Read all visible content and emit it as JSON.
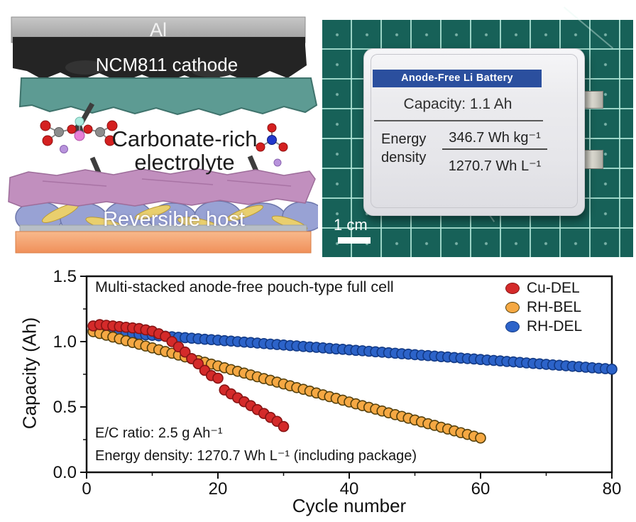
{
  "schematic": {
    "al": "Al",
    "cathode": "NCM811 cathode",
    "electrolyte_line1": "Carbonate-rich",
    "electrolyte_line2": "electrolyte",
    "host": "Reversible host"
  },
  "photo": {
    "title": "Anode-Free Li Battery",
    "capacity": "Capacity: 1.1 Ah",
    "energy_word1": "Energy",
    "energy_word2": "density",
    "energy_gravimetric": "346.7 Wh kg⁻¹",
    "energy_volumetric": "1270.7 Wh L⁻¹",
    "scale": "1 cm"
  },
  "chart_data": {
    "type": "scatter",
    "title": "Multi-stacked anode-free pouch-type full cell",
    "xlabel": "Cycle number",
    "ylabel": "Capacity (Ah)",
    "xlim": [
      0,
      80
    ],
    "ylim": [
      0,
      1.5
    ],
    "x_ticks": [
      0,
      20,
      40,
      60,
      80
    ],
    "x_minor_ticks": [
      10,
      30,
      50,
      70
    ],
    "y_ticks": [
      0,
      0.5,
      1,
      1.5
    ],
    "y_minor_ticks": [
      0.25,
      0.75,
      1.25
    ],
    "grid": false,
    "legend_position": "top-right",
    "annotations": [
      "E/C ratio: 2.5 g Ah⁻¹",
      "Energy density: 1270.7 Wh L⁻¹ (including package)"
    ],
    "series": [
      {
        "name": "Cu-DEL",
        "color": "#d42a2a",
        "edge": "#871414",
        "x": [
          1,
          2,
          3,
          4,
          5,
          6,
          7,
          8,
          9,
          10,
          11,
          12,
          13,
          14,
          15,
          16,
          17,
          18,
          19,
          20,
          21,
          22,
          23,
          24,
          25,
          26,
          27,
          28,
          29,
          30
        ],
        "y": [
          1.12,
          1.13,
          1.125,
          1.12,
          1.115,
          1.11,
          1.105,
          1.1,
          1.09,
          1.08,
          1.06,
          1.04,
          1.0,
          0.96,
          0.92,
          0.87,
          0.83,
          0.78,
          0.74,
          0.72,
          0.63,
          0.6,
          0.57,
          0.54,
          0.51,
          0.48,
          0.45,
          0.42,
          0.39,
          0.35
        ]
      },
      {
        "name": "RH-BEL",
        "color": "#f5a843",
        "edge": "#55410d",
        "x": [
          1,
          2,
          3,
          4,
          5,
          6,
          7,
          8,
          9,
          10,
          11,
          12,
          13,
          14,
          15,
          16,
          17,
          18,
          19,
          20,
          21,
          22,
          23,
          24,
          25,
          26,
          27,
          28,
          29,
          30,
          31,
          32,
          33,
          34,
          35,
          36,
          37,
          38,
          39,
          40,
          41,
          42,
          43,
          44,
          45,
          46,
          47,
          48,
          49,
          50,
          51,
          52,
          53,
          54,
          55,
          56,
          57,
          58,
          59,
          60
        ],
        "y": [
          1.076,
          1.062,
          1.049,
          1.035,
          1.021,
          1.007,
          0.993,
          0.98,
          0.966,
          0.952,
          0.938,
          0.924,
          0.911,
          0.897,
          0.883,
          0.869,
          0.855,
          0.842,
          0.828,
          0.814,
          0.8,
          0.786,
          0.773,
          0.759,
          0.745,
          0.731,
          0.717,
          0.704,
          0.69,
          0.676,
          0.662,
          0.648,
          0.635,
          0.621,
          0.607,
          0.593,
          0.579,
          0.566,
          0.552,
          0.538,
          0.524,
          0.51,
          0.497,
          0.483,
          0.469,
          0.455,
          0.441,
          0.428,
          0.414,
          0.4,
          0.386,
          0.372,
          0.359,
          0.345,
          0.331,
          0.317,
          0.303,
          0.29,
          0.276,
          0.262
        ]
      },
      {
        "name": "RH-DEL",
        "color": "#2c63c9",
        "edge": "#133a85",
        "x": [
          1,
          2,
          3,
          4,
          5,
          6,
          7,
          8,
          9,
          10,
          11,
          12,
          13,
          14,
          15,
          16,
          17,
          18,
          19,
          20,
          21,
          22,
          23,
          24,
          25,
          26,
          27,
          28,
          29,
          30,
          31,
          32,
          33,
          34,
          35,
          36,
          37,
          38,
          39,
          40,
          41,
          42,
          43,
          44,
          45,
          46,
          47,
          48,
          49,
          50,
          51,
          52,
          53,
          54,
          55,
          56,
          57,
          58,
          59,
          60,
          61,
          62,
          63,
          64,
          65,
          66,
          67,
          68,
          69,
          70,
          71,
          72,
          73,
          74,
          75,
          76,
          77,
          78,
          79,
          80
        ],
        "y": [
          1.081,
          1.078,
          1.074,
          1.07,
          1.067,
          1.063,
          1.059,
          1.055,
          1.052,
          1.048,
          1.044,
          1.041,
          1.037,
          1.033,
          1.03,
          1.026,
          1.022,
          1.018,
          1.015,
          1.011,
          1.007,
          1.004,
          1.0,
          0.996,
          0.993,
          0.989,
          0.985,
          0.981,
          0.978,
          0.974,
          0.97,
          0.967,
          0.963,
          0.959,
          0.956,
          0.952,
          0.948,
          0.944,
          0.941,
          0.937,
          0.933,
          0.93,
          0.926,
          0.922,
          0.919,
          0.915,
          0.911,
          0.907,
          0.904,
          0.9,
          0.896,
          0.893,
          0.889,
          0.885,
          0.882,
          0.878,
          0.874,
          0.87,
          0.867,
          0.863,
          0.859,
          0.856,
          0.852,
          0.848,
          0.845,
          0.841,
          0.837,
          0.833,
          0.83,
          0.826,
          0.822,
          0.819,
          0.815,
          0.811,
          0.808,
          0.804,
          0.8,
          0.796,
          0.793,
          0.789
        ]
      }
    ]
  }
}
